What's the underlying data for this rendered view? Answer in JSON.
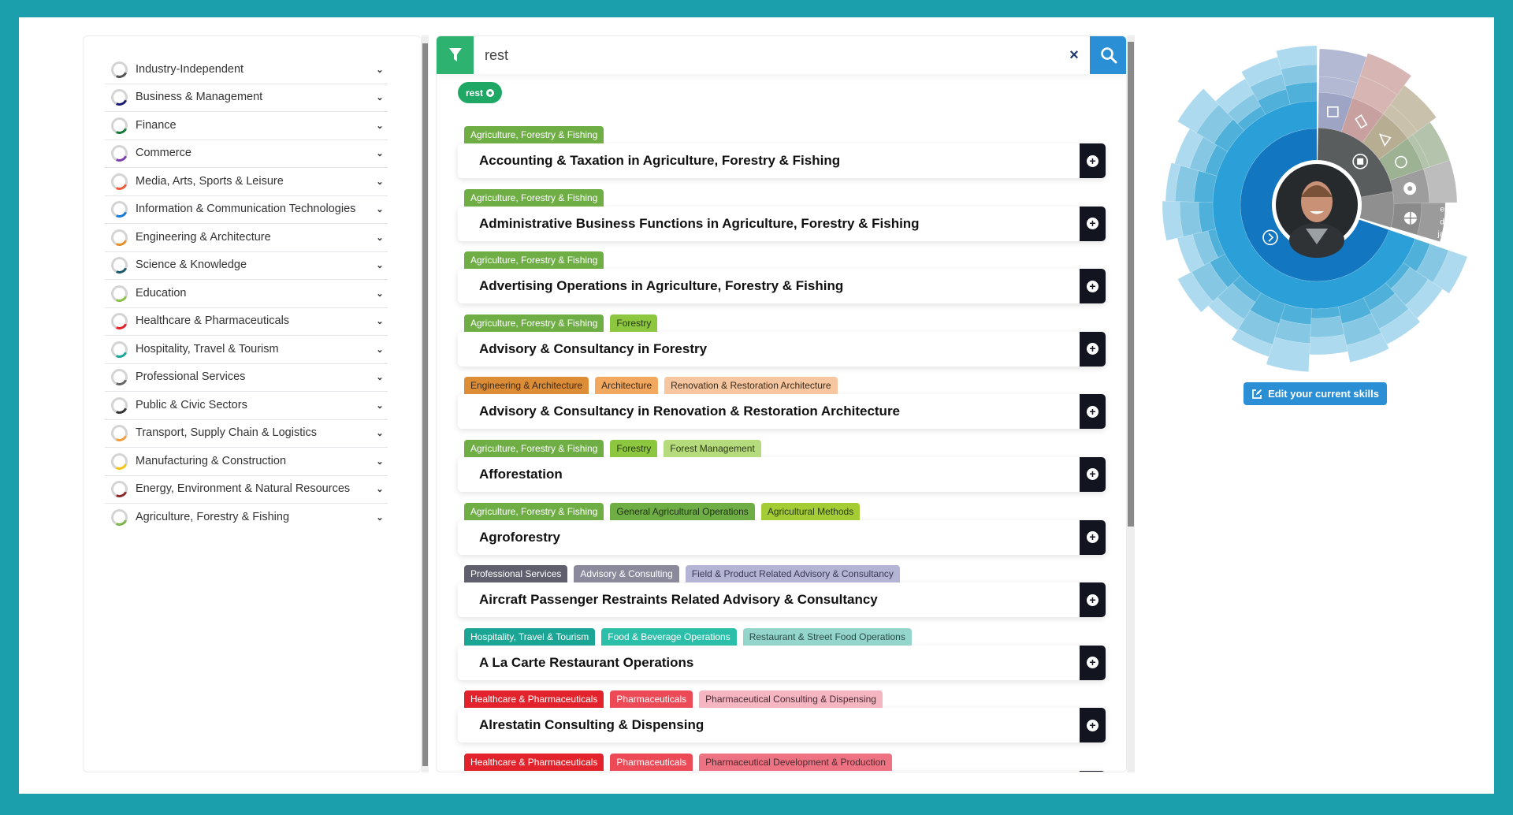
{
  "colors": {
    "frame": "#1b9fad",
    "filter": "#2db36f",
    "search": "#2a8fd4",
    "add": "#12141f"
  },
  "sidebar": {
    "items": [
      {
        "label": "Industry-Independent",
        "accent": "#555555"
      },
      {
        "label": "Business & Management",
        "accent": "#1a1a6e"
      },
      {
        "label": "Finance",
        "accent": "#1a7a3a"
      },
      {
        "label": "Commerce",
        "accent": "#7b3fb0"
      },
      {
        "label": "Media, Arts, Sports & Leisure",
        "accent": "#f05a3a"
      },
      {
        "label": "Information & Communication Technologies",
        "accent": "#1a7ad4"
      },
      {
        "label": "Engineering & Architecture",
        "accent": "#e8902a"
      },
      {
        "label": "Science & Knowledge",
        "accent": "#1a5a6a"
      },
      {
        "label": "Education",
        "accent": "#8bc34a"
      },
      {
        "label": "Healthcare & Pharmaceuticals",
        "accent": "#e3232c"
      },
      {
        "label": "Hospitality, Travel & Tourism",
        "accent": "#1aa79a"
      },
      {
        "label": "Professional Services",
        "accent": "#666666"
      },
      {
        "label": "Public & Civic Sectors",
        "accent": "#333333"
      },
      {
        "label": "Transport, Supply Chain & Logistics",
        "accent": "#f0a040"
      },
      {
        "label": "Manufacturing & Construction",
        "accent": "#f5c518"
      },
      {
        "label": "Energy, Environment & Natural Resources",
        "accent": "#8b2a2a"
      },
      {
        "label": "Agriculture, Forestry & Fishing",
        "accent": "#7ab648"
      }
    ]
  },
  "search": {
    "value": "rest",
    "clear_label": "×",
    "chip": "rest"
  },
  "results": [
    {
      "title": "Accounting & Taxation in Agriculture, Forestry & Fishing",
      "tags": [
        {
          "text": "Agriculture, Forestry & Fishing",
          "bg": "#6fae45",
          "fg": "#fff"
        }
      ]
    },
    {
      "title": "Administrative Business Functions in Agriculture, Forestry & Fishing",
      "tags": [
        {
          "text": "Agriculture, Forestry & Fishing",
          "bg": "#6fae45",
          "fg": "#fff"
        }
      ]
    },
    {
      "title": "Advertising Operations in Agriculture, Forestry & Fishing",
      "tags": [
        {
          "text": "Agriculture, Forestry & Fishing",
          "bg": "#6fae45",
          "fg": "#fff"
        }
      ]
    },
    {
      "title": "Advisory & Consultancy in Forestry",
      "tags": [
        {
          "text": "Agriculture, Forestry & Fishing",
          "bg": "#6fae45",
          "fg": "#fff"
        },
        {
          "text": "Forestry",
          "bg": "#8dc63f",
          "fg": "#2b3a1a"
        }
      ]
    },
    {
      "title": "Advisory & Consultancy in Renovation & Restoration Architecture",
      "tags": [
        {
          "text": "Engineering & Architecture",
          "bg": "#dc8d36",
          "fg": "#3a2a1a"
        },
        {
          "text": "Architecture",
          "bg": "#f2a85e",
          "fg": "#3a2a1a"
        },
        {
          "text": "Renovation & Restoration Architecture",
          "bg": "#f6c6a0",
          "fg": "#3a2a1a"
        }
      ]
    },
    {
      "title": "Afforestation",
      "tags": [
        {
          "text": "Agriculture, Forestry & Fishing",
          "bg": "#6fae45",
          "fg": "#fff"
        },
        {
          "text": "Forestry",
          "bg": "#8dc63f",
          "fg": "#2b3a1a"
        },
        {
          "text": "Forest Management",
          "bg": "#b6db7c",
          "fg": "#2b3a1a"
        }
      ]
    },
    {
      "title": "Agroforestry",
      "tags": [
        {
          "text": "Agriculture, Forestry & Fishing",
          "bg": "#6fae45",
          "fg": "#fff"
        },
        {
          "text": "General Agricultural Operations",
          "bg": "#6fae45",
          "fg": "#22331a"
        },
        {
          "text": "Agricultural Methods",
          "bg": "#a3cc35",
          "fg": "#2b3a1a"
        }
      ]
    },
    {
      "title": "Aircraft Passenger Restraints Related Advisory & Consultancy",
      "tags": [
        {
          "text": "Professional Services",
          "bg": "#5f5f6d",
          "fg": "#fff"
        },
        {
          "text": "Advisory & Consulting",
          "bg": "#8a8a9c",
          "fg": "#fff"
        },
        {
          "text": "Field & Product Related Advisory & Consultancy",
          "bg": "#b4b4d4",
          "fg": "#3a3a55"
        }
      ]
    },
    {
      "title": "A La Carte Restaurant Operations",
      "tags": [
        {
          "text": "Hospitality, Travel & Tourism",
          "bg": "#1aa594",
          "fg": "#fff"
        },
        {
          "text": "Food & Beverage Operations",
          "bg": "#2bbfa9",
          "fg": "#fff"
        },
        {
          "text": "Restaurant & Street Food Operations",
          "bg": "#94d5cc",
          "fg": "#2a4a45"
        }
      ]
    },
    {
      "title": "Alrestatin Consulting & Dispensing",
      "tags": [
        {
          "text": "Healthcare & Pharmaceuticals",
          "bg": "#e3232c",
          "fg": "#fff"
        },
        {
          "text": "Pharmaceuticals",
          "bg": "#ec4a57",
          "fg": "#fff"
        },
        {
          "text": "Pharmaceutical Consulting & Dispensing",
          "bg": "#f5b6c1",
          "fg": "#4a2a30"
        }
      ]
    },
    {
      "title": "",
      "tags": [
        {
          "text": "Healthcare & Pharmaceuticals",
          "bg": "#e3232c",
          "fg": "#fff"
        },
        {
          "text": "Pharmaceuticals",
          "bg": "#ec4a57",
          "fg": "#fff"
        },
        {
          "text": "Pharmaceutical Development & Production",
          "bg": "#ee7382",
          "fg": "#4a2a30"
        }
      ]
    }
  ],
  "skills_wheel": {
    "languages": [
      "eng",
      "dut",
      "jap"
    ]
  },
  "edit_button": {
    "label": "Edit your current skills"
  }
}
